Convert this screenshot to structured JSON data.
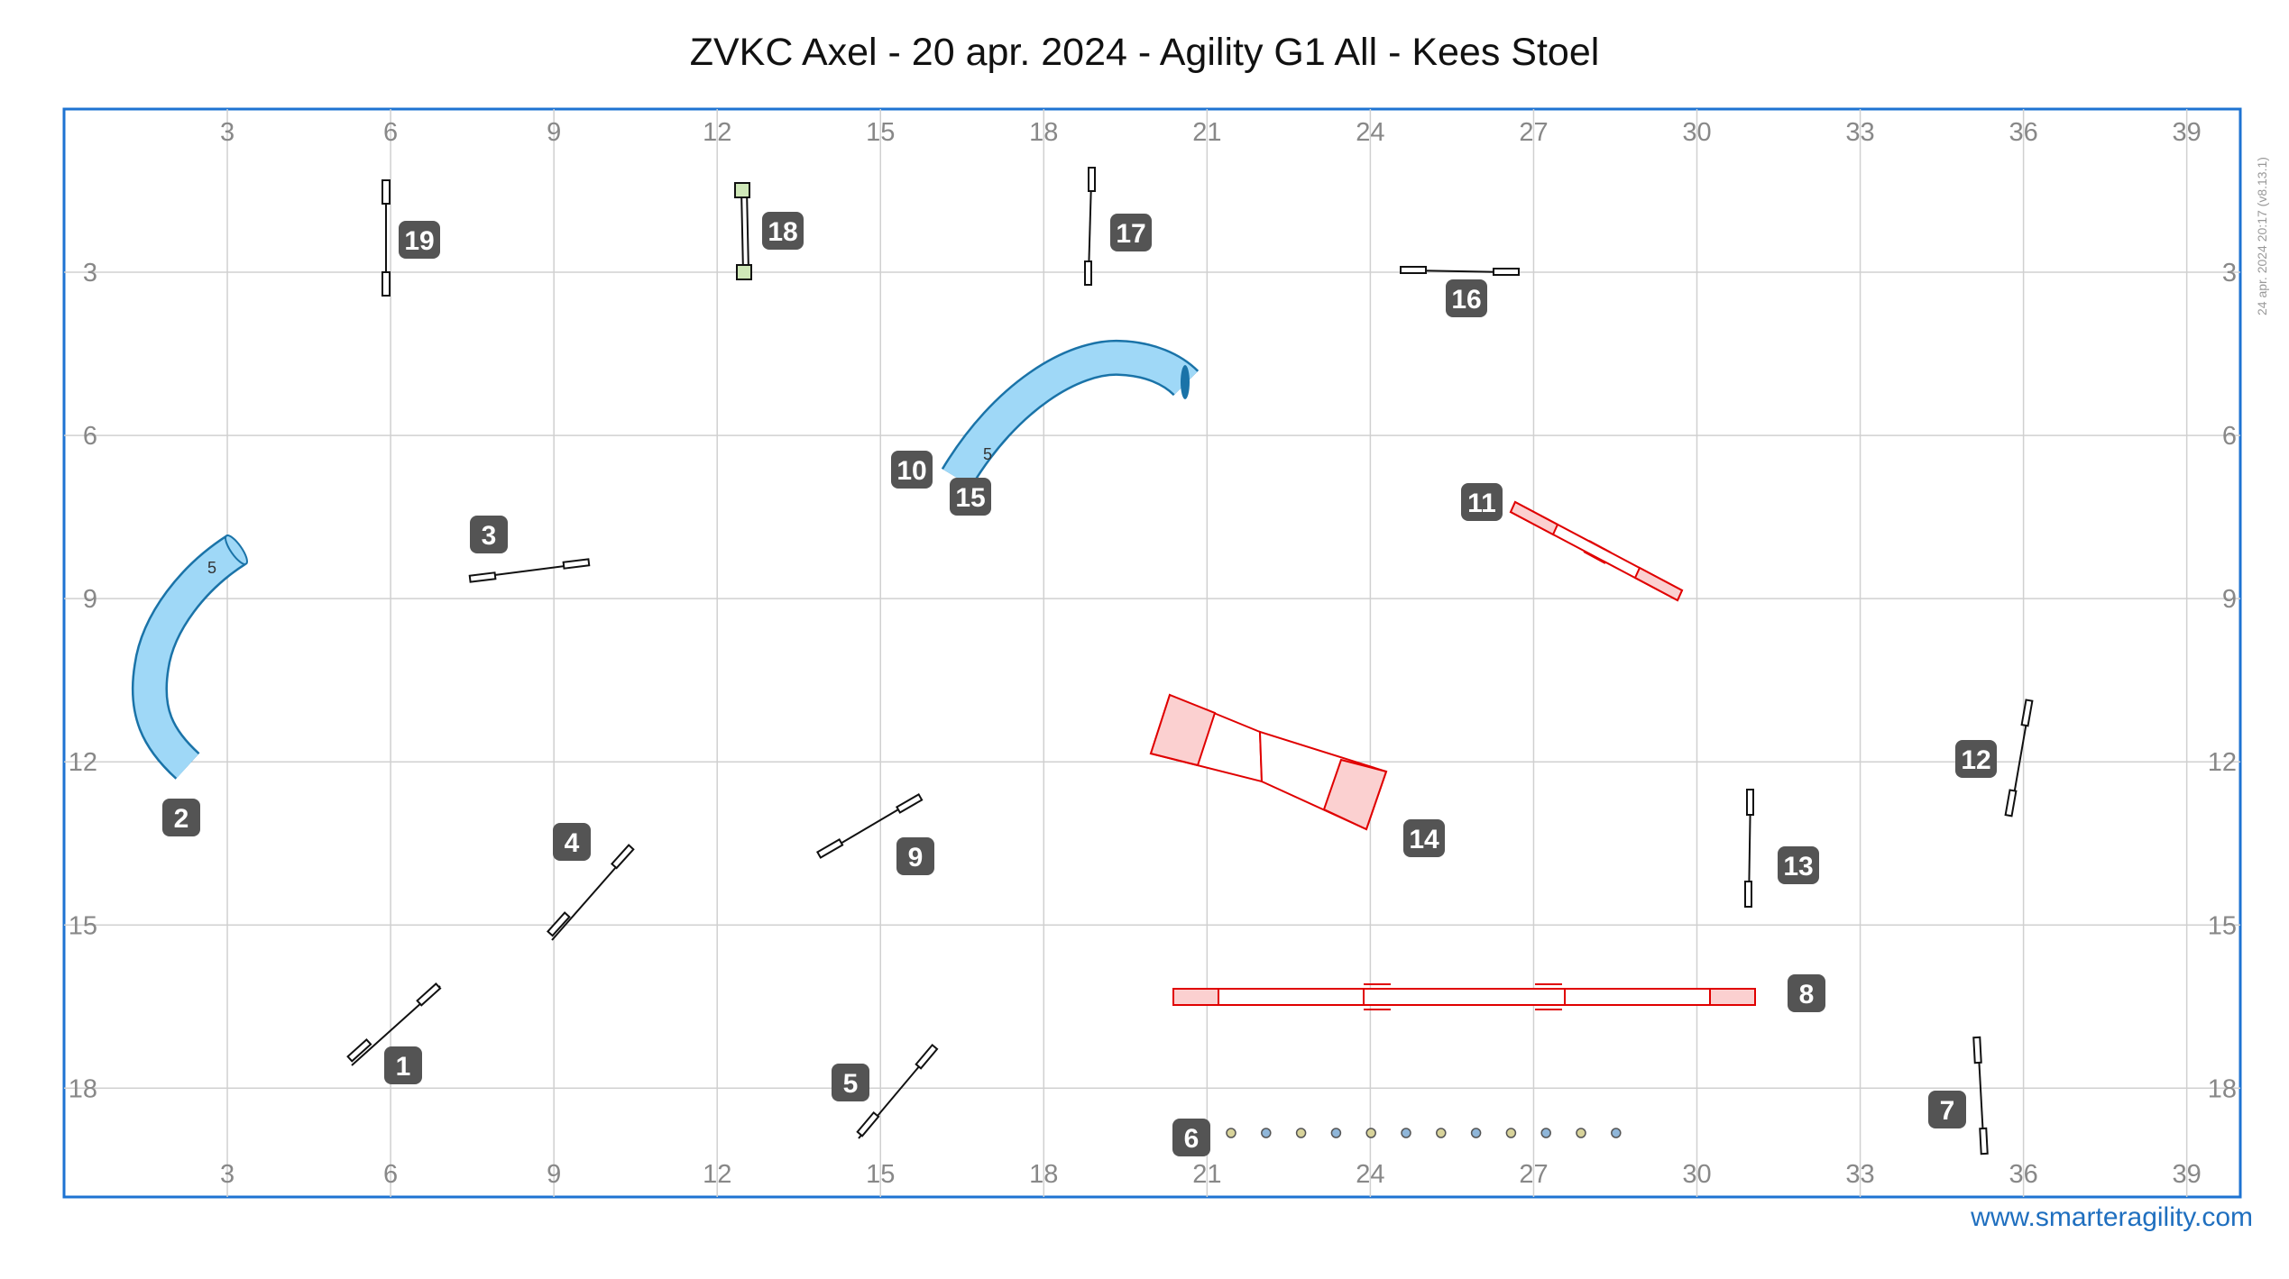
{
  "title": "ZVKC Axel - 20 apr. 2024 - Agility G1 All - Kees Stoel",
  "footer_url": "www.smarteragility.com",
  "version_text": "24 apr. 2024 20:17  (v8.13.1)",
  "colors": {
    "border": "#1e73d2",
    "grid": "#d0d0d0",
    "badge": "#545454",
    "tunnel": "#9fd8f7",
    "contact_red": "#e00000",
    "url": "#1f6fbf"
  },
  "axes": {
    "x_ticks": [
      "3",
      "6",
      "9",
      "12",
      "15",
      "18",
      "21",
      "24",
      "27",
      "30",
      "33",
      "36",
      "39"
    ],
    "y_ticks": [
      "3",
      "6",
      "9",
      "12",
      "15",
      "18"
    ]
  },
  "obstacles": [
    {
      "number": "1",
      "type": "jump"
    },
    {
      "number": "2",
      "type": "tunnel"
    },
    {
      "number": "3",
      "type": "jump"
    },
    {
      "number": "4",
      "type": "jump"
    },
    {
      "number": "5",
      "type": "jump"
    },
    {
      "number": "6",
      "type": "weave"
    },
    {
      "number": "7",
      "type": "jump"
    },
    {
      "number": "8",
      "type": "dogwalk"
    },
    {
      "number": "9",
      "type": "jump"
    },
    {
      "number": "10",
      "type": "tunnel"
    },
    {
      "number": "11",
      "type": "seesaw"
    },
    {
      "number": "12",
      "type": "jump"
    },
    {
      "number": "13",
      "type": "jump"
    },
    {
      "number": "14",
      "type": "a-frame"
    },
    {
      "number": "15",
      "type": "tunnel"
    },
    {
      "number": "16",
      "type": "jump"
    },
    {
      "number": "17",
      "type": "jump"
    },
    {
      "number": "18",
      "type": "jump"
    },
    {
      "number": "19",
      "type": "jump"
    }
  ],
  "tunnel_length_label": "5"
}
